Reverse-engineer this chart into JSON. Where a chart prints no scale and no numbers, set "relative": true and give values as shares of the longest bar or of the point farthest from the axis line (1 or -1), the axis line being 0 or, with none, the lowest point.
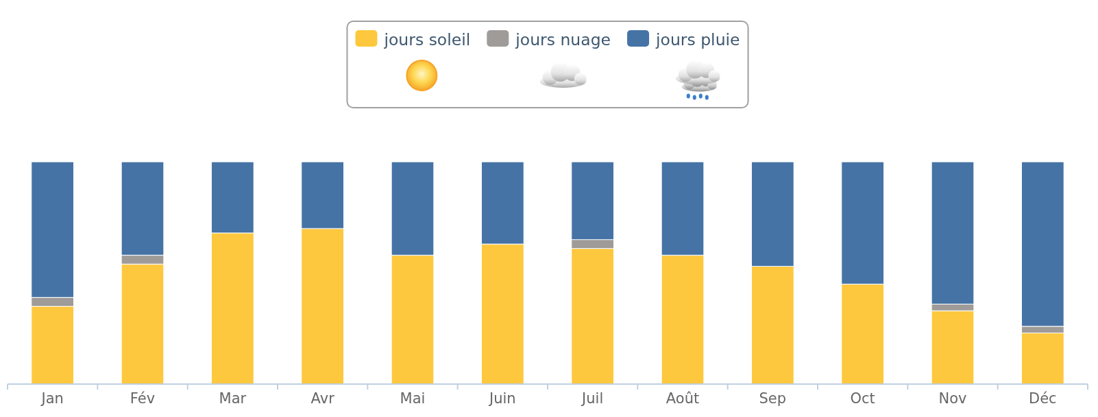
{
  "chart_data": {
    "type": "bar",
    "stacked": true,
    "relative": true,
    "legend": "top",
    "categories": [
      "Jan",
      "Fév",
      "Mar",
      "Avr",
      "Mai",
      "Juin",
      "Juil",
      "Août",
      "Sep",
      "Oct",
      "Nov",
      "Déc"
    ],
    "series": [
      {
        "name": "jours soleil",
        "color": "#fdc83e",
        "values": [
          0.35,
          0.54,
          0.68,
          0.7,
          0.58,
          0.63,
          0.61,
          0.58,
          0.53,
          0.45,
          0.33,
          0.23
        ]
      },
      {
        "name": "jours nuage",
        "color": "#9f9b98",
        "values": [
          0.04,
          0.04,
          null,
          null,
          null,
          null,
          0.04,
          null,
          null,
          null,
          0.03,
          0.03
        ]
      },
      {
        "name": "jours pluie",
        "color": "#4673a5",
        "values": [
          0.61,
          0.42,
          0.32,
          0.3,
          0.42,
          0.37,
          0.35,
          0.42,
          0.47,
          0.55,
          0.64,
          0.74
        ]
      }
    ]
  }
}
